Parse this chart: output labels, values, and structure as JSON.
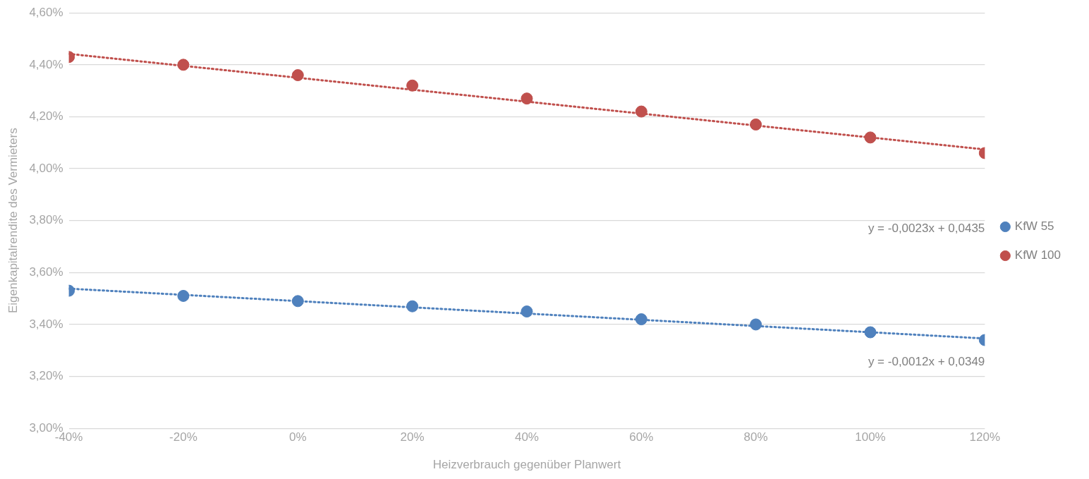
{
  "chart_data": {
    "type": "scatter",
    "xlabel": "Heizverbrauch gegenüber Planwert",
    "ylabel": "Eigenkapitalrendite des Vermieters",
    "xlim": [
      -40,
      120
    ],
    "xticks": [
      {
        "value": -40,
        "label": "-40%"
      },
      {
        "value": -20,
        "label": "-20%"
      },
      {
        "value": 0,
        "label": "0%"
      },
      {
        "value": 20,
        "label": "20%"
      },
      {
        "value": 40,
        "label": "40%"
      },
      {
        "value": 60,
        "label": "60%"
      },
      {
        "value": 80,
        "label": "80%"
      },
      {
        "value": 100,
        "label": "100%"
      },
      {
        "value": 120,
        "label": "120%"
      }
    ],
    "ylim": [
      3.0,
      4.6
    ],
    "yticks": [
      {
        "value": 3.0,
        "label": "3,00%"
      },
      {
        "value": 3.2,
        "label": "3,20%"
      },
      {
        "value": 3.4,
        "label": "3,40%"
      },
      {
        "value": 3.6,
        "label": "3,60%"
      },
      {
        "value": 3.8,
        "label": "3,80%"
      },
      {
        "value": 4.0,
        "label": "4,00%"
      },
      {
        "value": 4.2,
        "label": "4,20%"
      },
      {
        "value": 4.4,
        "label": "4,40%"
      },
      {
        "value": 4.6,
        "label": "4,60%"
      }
    ],
    "grid": "y",
    "legend": "right",
    "marker": "circle",
    "series": [
      {
        "name": "KfW 55",
        "color": "#4f81bd",
        "x": [
          -40,
          -20,
          0,
          20,
          40,
          60,
          80,
          100,
          120
        ],
        "values": [
          3.53,
          3.51,
          3.49,
          3.47,
          3.45,
          3.42,
          3.4,
          3.37,
          3.34
        ]
      },
      {
        "name": "KfW 100",
        "color": "#c0504d",
        "x": [
          -40,
          -20,
          0,
          20,
          40,
          60,
          80,
          100,
          120
        ],
        "values": [
          4.43,
          4.4,
          4.36,
          4.32,
          4.27,
          4.22,
          4.17,
          4.12,
          4.06
        ]
      },
      {
        "type": "line",
        "color": "#4f81bd",
        "line_style": "dotted",
        "marker": "none",
        "x": [
          -40,
          120
        ],
        "values": [
          3.538,
          3.346
        ]
      },
      {
        "type": "line",
        "color": "#c0504d",
        "line_style": "dotted",
        "marker": "none",
        "x": [
          -40,
          120
        ],
        "values": [
          4.442,
          4.074
        ]
      }
    ],
    "annotations": [
      "y = -0,0023x + 0,0435",
      "y = -0,0012x + 0,0349"
    ]
  }
}
